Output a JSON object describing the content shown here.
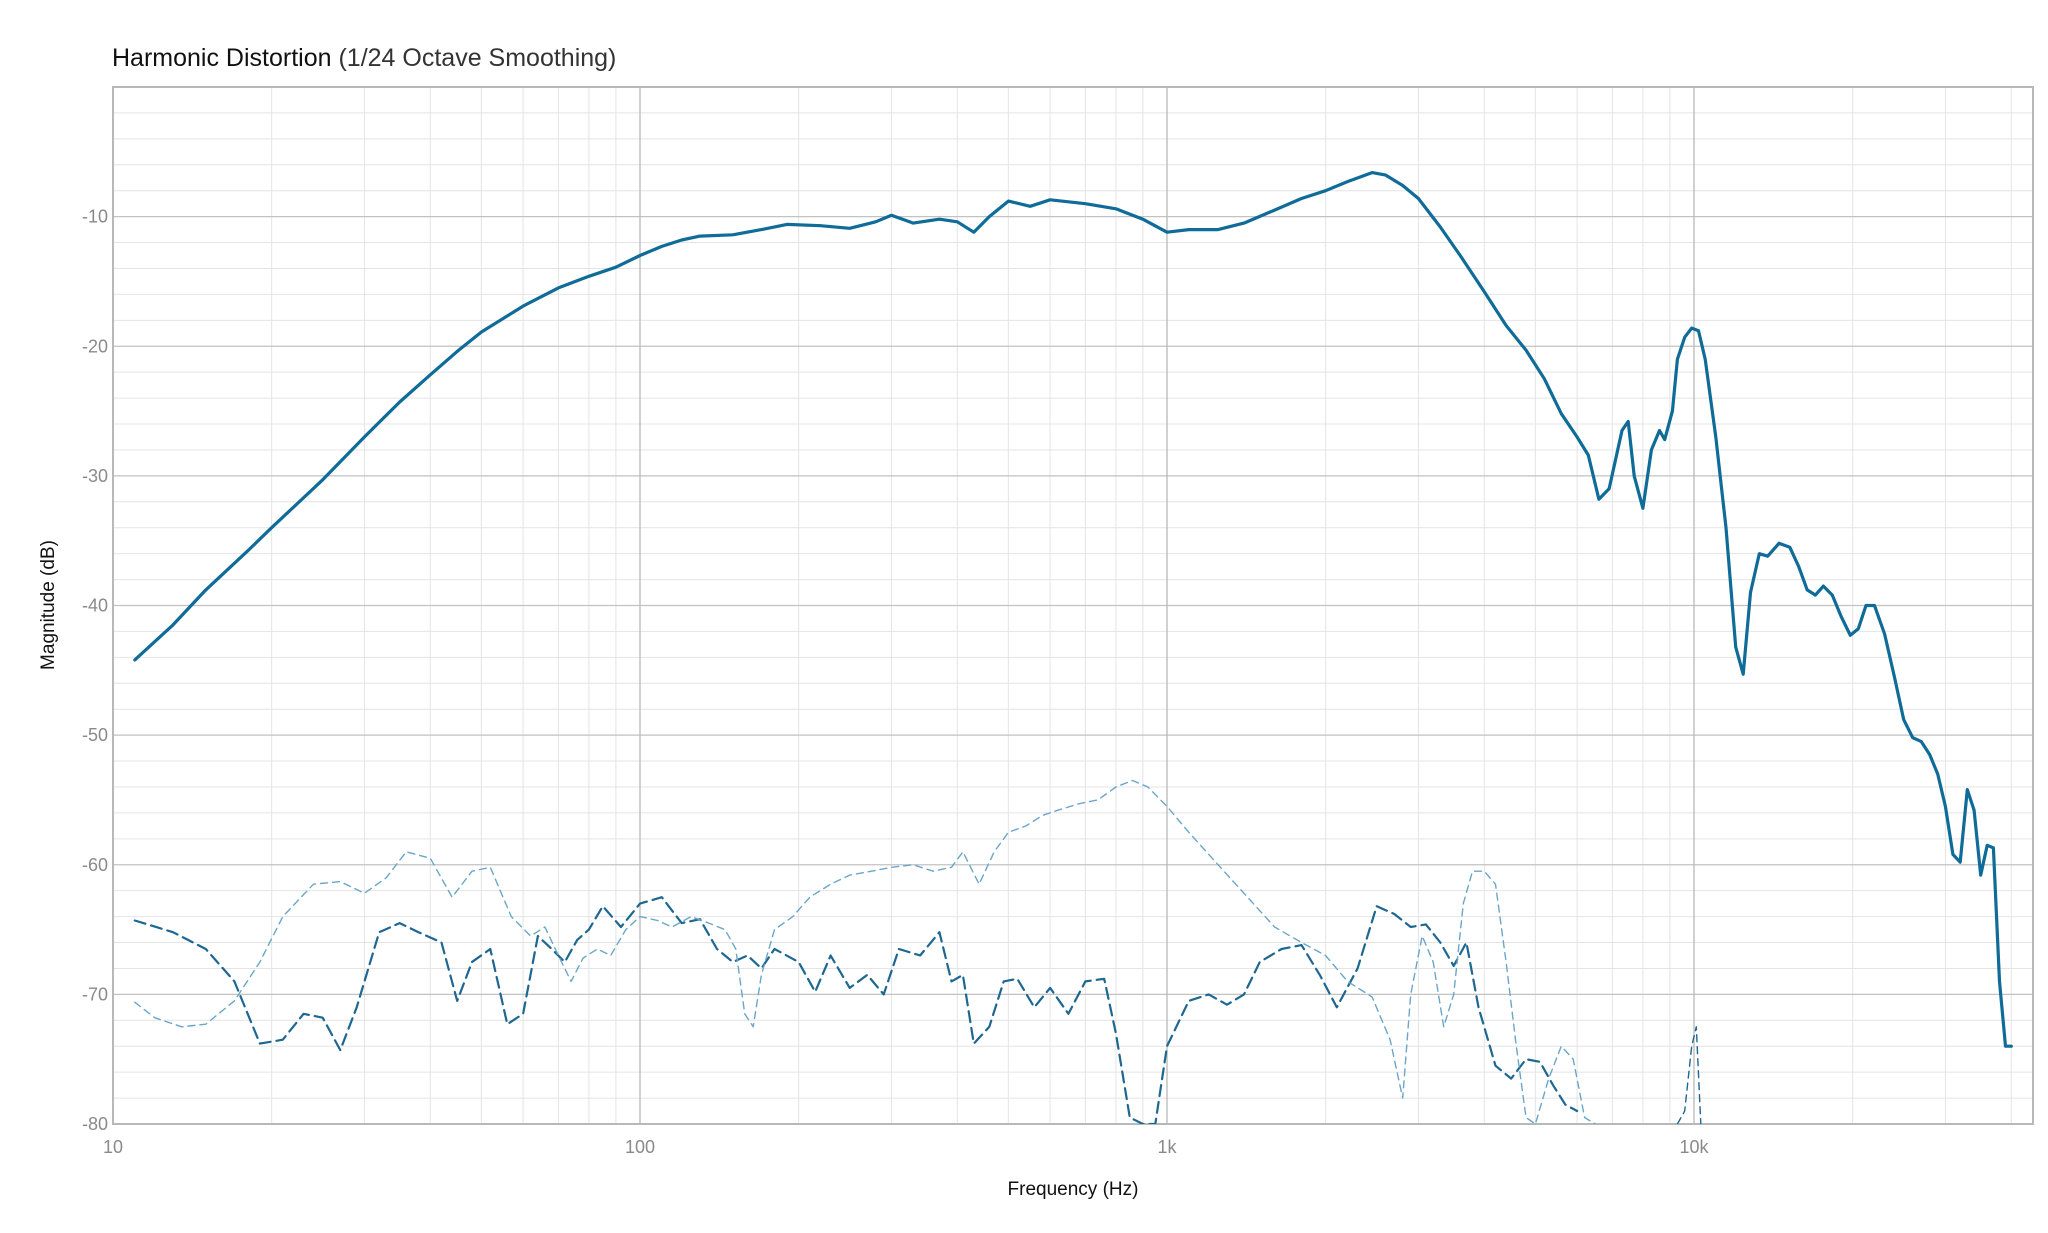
{
  "chart_data": {
    "type": "line",
    "title": "Harmonic Distortion",
    "subtitle": "(1/24 Octave Smoothing)",
    "xlabel": "Frequency (Hz)",
    "ylabel": "Magnitude (dB)",
    "x_scale": "log",
    "xlim": [
      10,
      40000
    ],
    "ylim": [
      -80,
      0
    ],
    "grid": true,
    "legend": "none",
    "x_ticks": [
      {
        "value": 10,
        "label": "10"
      },
      {
        "value": 100,
        "label": "100"
      },
      {
        "value": 1000,
        "label": "1k"
      },
      {
        "value": 10000,
        "label": "10k"
      }
    ],
    "y_ticks": [
      {
        "value": -10,
        "label": "-10"
      },
      {
        "value": -20,
        "label": "-20"
      },
      {
        "value": -30,
        "label": "-30"
      },
      {
        "value": -40,
        "label": "-40"
      },
      {
        "value": -50,
        "label": "-50"
      },
      {
        "value": -60,
        "label": "-60"
      },
      {
        "value": -70,
        "label": "-70"
      },
      {
        "value": -80,
        "label": "-80"
      }
    ],
    "series": [
      {
        "style": "solid",
        "color": "#0f6b97",
        "points": [
          [
            11,
            -44.2
          ],
          [
            13,
            -41.5
          ],
          [
            15,
            -38.8
          ],
          [
            18,
            -35.8
          ],
          [
            20,
            -34.0
          ],
          [
            25,
            -30.3
          ],
          [
            30,
            -27.0
          ],
          [
            35,
            -24.3
          ],
          [
            40,
            -22.2
          ],
          [
            45,
            -20.4
          ],
          [
            50,
            -18.9
          ],
          [
            60,
            -16.9
          ],
          [
            70,
            -15.5
          ],
          [
            80,
            -14.6
          ],
          [
            90,
            -13.9
          ],
          [
            100,
            -13.0
          ],
          [
            110,
            -12.3
          ],
          [
            120,
            -11.8
          ],
          [
            130,
            -11.5
          ],
          [
            150,
            -11.4
          ],
          [
            170,
            -11.0
          ],
          [
            190,
            -10.6
          ],
          [
            220,
            -10.7
          ],
          [
            250,
            -10.9
          ],
          [
            280,
            -10.4
          ],
          [
            300,
            -9.9
          ],
          [
            330,
            -10.5
          ],
          [
            370,
            -10.2
          ],
          [
            400,
            -10.4
          ],
          [
            430,
            -11.2
          ],
          [
            460,
            -10.0
          ],
          [
            500,
            -8.8
          ],
          [
            550,
            -9.2
          ],
          [
            600,
            -8.7
          ],
          [
            700,
            -9.0
          ],
          [
            800,
            -9.4
          ],
          [
            900,
            -10.2
          ],
          [
            1000,
            -11.2
          ],
          [
            1100,
            -11.0
          ],
          [
            1250,
            -11.0
          ],
          [
            1400,
            -10.5
          ],
          [
            1600,
            -9.5
          ],
          [
            1800,
            -8.6
          ],
          [
            2000,
            -8.0
          ],
          [
            2200,
            -7.3
          ],
          [
            2450,
            -6.6
          ],
          [
            2600,
            -6.8
          ],
          [
            2800,
            -7.6
          ],
          [
            3000,
            -8.6
          ],
          [
            3300,
            -10.8
          ],
          [
            3600,
            -13.0
          ],
          [
            4000,
            -15.8
          ],
          [
            4400,
            -18.4
          ],
          [
            4800,
            -20.3
          ],
          [
            5200,
            -22.5
          ],
          [
            5600,
            -25.2
          ],
          [
            6000,
            -27.0
          ],
          [
            6300,
            -28.4
          ],
          [
            6600,
            -31.8
          ],
          [
            6900,
            -31.0
          ],
          [
            7300,
            -26.5
          ],
          [
            7500,
            -25.8
          ],
          [
            7700,
            -30.0
          ],
          [
            8000,
            -32.5
          ],
          [
            8300,
            -28.0
          ],
          [
            8600,
            -26.5
          ],
          [
            8800,
            -27.2
          ],
          [
            9100,
            -25.0
          ],
          [
            9300,
            -21.0
          ],
          [
            9600,
            -19.3
          ],
          [
            9900,
            -18.6
          ],
          [
            10200,
            -18.8
          ],
          [
            10500,
            -21.0
          ],
          [
            11000,
            -27.0
          ],
          [
            11500,
            -34.0
          ],
          [
            12000,
            -43.2
          ],
          [
            12400,
            -45.3
          ],
          [
            12800,
            -39.0
          ],
          [
            13300,
            -36.0
          ],
          [
            13800,
            -36.2
          ],
          [
            14500,
            -35.2
          ],
          [
            15200,
            -35.5
          ],
          [
            15800,
            -37.0
          ],
          [
            16400,
            -38.8
          ],
          [
            17000,
            -39.2
          ],
          [
            17600,
            -38.5
          ],
          [
            18300,
            -39.2
          ],
          [
            19000,
            -40.8
          ],
          [
            19800,
            -42.3
          ],
          [
            20500,
            -41.8
          ],
          [
            21200,
            -40.0
          ],
          [
            22000,
            -40.0
          ],
          [
            23000,
            -42.2
          ],
          [
            24000,
            -45.5
          ],
          [
            25000,
            -48.8
          ],
          [
            26000,
            -50.2
          ],
          [
            27000,
            -50.5
          ],
          [
            28000,
            -51.5
          ],
          [
            29000,
            -53.0
          ],
          [
            30000,
            -55.5
          ],
          [
            31000,
            -59.2
          ],
          [
            32000,
            -59.8
          ],
          [
            33000,
            -54.2
          ],
          [
            34000,
            -55.8
          ],
          [
            35000,
            -60.8
          ],
          [
            36000,
            -58.5
          ],
          [
            37000,
            -58.7
          ],
          [
            38000,
            -69.0
          ],
          [
            39000,
            -74.0
          ],
          [
            40000,
            -74.0
          ]
        ]
      },
      {
        "style": "dashed",
        "color": "#1d6791",
        "points": [
          [
            11,
            -64.3
          ],
          [
            13,
            -65.2
          ],
          [
            15,
            -66.5
          ],
          [
            17,
            -69.0
          ],
          [
            19,
            -73.8
          ],
          [
            21,
            -73.5
          ],
          [
            23,
            -71.5
          ],
          [
            25,
            -71.8
          ],
          [
            27,
            -74.3
          ],
          [
            29,
            -71.0
          ],
          [
            32,
            -65.2
          ],
          [
            35,
            -64.5
          ],
          [
            38,
            -65.2
          ],
          [
            42,
            -66.0
          ],
          [
            45,
            -70.5
          ],
          [
            48,
            -67.5
          ],
          [
            52,
            -66.5
          ],
          [
            56,
            -72.3
          ],
          [
            60,
            -71.5
          ],
          [
            64,
            -65.5
          ],
          [
            68,
            -66.5
          ],
          [
            72,
            -67.5
          ],
          [
            76,
            -65.8
          ],
          [
            80,
            -65.0
          ],
          [
            85,
            -63.2
          ],
          [
            92,
            -64.8
          ],
          [
            100,
            -63.0
          ],
          [
            110,
            -62.5
          ],
          [
            120,
            -64.5
          ],
          [
            130,
            -64.2
          ],
          [
            140,
            -66.5
          ],
          [
            150,
            -67.5
          ],
          [
            160,
            -67.0
          ],
          [
            170,
            -68.0
          ],
          [
            180,
            -66.5
          ],
          [
            200,
            -67.5
          ],
          [
            215,
            -69.8
          ],
          [
            230,
            -67.0
          ],
          [
            250,
            -69.5
          ],
          [
            270,
            -68.5
          ],
          [
            290,
            -70.0
          ],
          [
            310,
            -66.5
          ],
          [
            340,
            -67.0
          ],
          [
            370,
            -65.2
          ],
          [
            390,
            -69.0
          ],
          [
            410,
            -68.5
          ],
          [
            430,
            -73.8
          ],
          [
            460,
            -72.5
          ],
          [
            490,
            -69.0
          ],
          [
            520,
            -68.8
          ],
          [
            560,
            -71.0
          ],
          [
            600,
            -69.5
          ],
          [
            650,
            -71.5
          ],
          [
            700,
            -69.0
          ],
          [
            760,
            -68.8
          ],
          [
            800,
            -73.0
          ],
          [
            850,
            -79.5
          ],
          [
            900,
            -80.0
          ],
          [
            950,
            -80.0
          ],
          [
            1000,
            -74.0
          ],
          [
            1100,
            -70.5
          ],
          [
            1200,
            -70.0
          ],
          [
            1300,
            -70.8
          ],
          [
            1400,
            -70.0
          ],
          [
            1500,
            -67.5
          ],
          [
            1650,
            -66.5
          ],
          [
            1800,
            -66.2
          ],
          [
            1950,
            -68.5
          ],
          [
            2100,
            -71.0
          ],
          [
            2300,
            -68.0
          ],
          [
            2500,
            -63.2
          ],
          [
            2700,
            -63.8
          ],
          [
            2900,
            -64.8
          ],
          [
            3100,
            -64.6
          ],
          [
            3300,
            -66.0
          ],
          [
            3500,
            -67.8
          ],
          [
            3700,
            -66.0
          ],
          [
            3900,
            -71.0
          ],
          [
            4200,
            -75.5
          ],
          [
            4500,
            -76.5
          ],
          [
            4800,
            -75.0
          ],
          [
            5100,
            -75.2
          ],
          [
            5400,
            -77.0
          ],
          [
            5700,
            -78.5
          ],
          [
            6000,
            -79.0
          ]
        ]
      },
      {
        "style": "dashed",
        "color": "#6aa6c8",
        "thin": true,
        "points": [
          [
            11,
            -70.6
          ],
          [
            12,
            -71.8
          ],
          [
            13.5,
            -72.5
          ],
          [
            15,
            -72.3
          ],
          [
            17,
            -70.5
          ],
          [
            19,
            -67.5
          ],
          [
            21,
            -64.0
          ],
          [
            24,
            -61.5
          ],
          [
            27,
            -61.3
          ],
          [
            30,
            -62.2
          ],
          [
            33,
            -61.0
          ],
          [
            36,
            -59.0
          ],
          [
            40,
            -59.5
          ],
          [
            44,
            -62.5
          ],
          [
            48,
            -60.5
          ],
          [
            52,
            -60.2
          ],
          [
            57,
            -64.0
          ],
          [
            62,
            -65.5
          ],
          [
            66,
            -64.8
          ],
          [
            70,
            -67.0
          ],
          [
            74,
            -69.0
          ],
          [
            78,
            -67.2
          ],
          [
            83,
            -66.5
          ],
          [
            88,
            -67.0
          ],
          [
            94,
            -65.0
          ],
          [
            100,
            -64.0
          ],
          [
            108,
            -64.3
          ],
          [
            115,
            -64.8
          ],
          [
            125,
            -64.0
          ],
          [
            135,
            -64.5
          ],
          [
            145,
            -65.0
          ],
          [
            152,
            -66.5
          ],
          [
            158,
            -71.5
          ],
          [
            164,
            -72.5
          ],
          [
            170,
            -68.5
          ],
          [
            180,
            -65.0
          ],
          [
            195,
            -64.0
          ],
          [
            210,
            -62.5
          ],
          [
            230,
            -61.5
          ],
          [
            250,
            -60.8
          ],
          [
            275,
            -60.5
          ],
          [
            300,
            -60.2
          ],
          [
            330,
            -60.0
          ],
          [
            360,
            -60.5
          ],
          [
            390,
            -60.2
          ],
          [
            410,
            -59.0
          ],
          [
            440,
            -61.5
          ],
          [
            470,
            -59.0
          ],
          [
            500,
            -57.5
          ],
          [
            540,
            -57.0
          ],
          [
            580,
            -56.2
          ],
          [
            620,
            -55.8
          ],
          [
            680,
            -55.3
          ],
          [
            740,
            -55.0
          ],
          [
            800,
            -54.0
          ],
          [
            860,
            -53.5
          ],
          [
            920,
            -54.0
          ],
          [
            1000,
            -55.5
          ],
          [
            1100,
            -57.5
          ],
          [
            1250,
            -60.0
          ],
          [
            1400,
            -62.2
          ],
          [
            1600,
            -64.8
          ],
          [
            1800,
            -66.0
          ],
          [
            2000,
            -67.0
          ],
          [
            2200,
            -69.0
          ],
          [
            2450,
            -70.2
          ],
          [
            2650,
            -73.5
          ],
          [
            2800,
            -78.0
          ],
          [
            2900,
            -70.0
          ],
          [
            3050,
            -65.5
          ],
          [
            3200,
            -67.5
          ],
          [
            3350,
            -72.5
          ],
          [
            3500,
            -70.0
          ],
          [
            3650,
            -63.0
          ],
          [
            3800,
            -60.5
          ],
          [
            4000,
            -60.5
          ],
          [
            4200,
            -61.5
          ],
          [
            4400,
            -67.5
          ],
          [
            4600,
            -74.0
          ],
          [
            4800,
            -79.5
          ],
          [
            5000,
            -80.0
          ],
          [
            5300,
            -76.5
          ],
          [
            5600,
            -74.0
          ],
          [
            5900,
            -75.0
          ],
          [
            6200,
            -79.5
          ],
          [
            6500,
            -80.0
          ]
        ]
      },
      {
        "style": "dashed",
        "color": "#1d6791",
        "thin": true,
        "points": [
          [
            9300,
            -80.0
          ],
          [
            9600,
            -79.0
          ],
          [
            9900,
            -74.0
          ],
          [
            10100,
            -72.5
          ],
          [
            10300,
            -80.0
          ]
        ]
      }
    ]
  }
}
